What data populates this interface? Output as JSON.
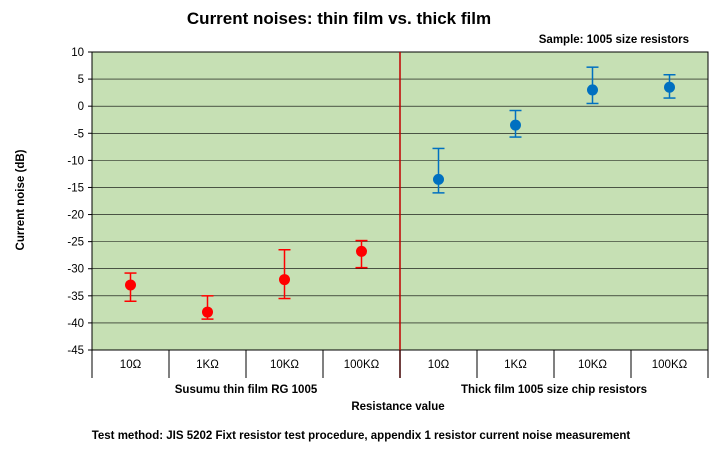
{
  "chart_data": {
    "type": "scatter",
    "title": "Current noises: thin film vs. thick film",
    "subtitle": "Sample: 1005 size resistors",
    "ylabel": "Current noise (dB)",
    "xlabel": "Resistance value",
    "footnote": "Test method: JIS 5202 Fixt resistor test procedure, appendix 1 resistor current noise measurement",
    "ylim": [
      -45,
      10
    ],
    "yticks": [
      10,
      5,
      0,
      -5,
      -10,
      -15,
      -20,
      -25,
      -30,
      -35,
      -40,
      -45
    ],
    "ytick_labels": [
      "10",
      "5",
      "0",
      "-5",
      "-10",
      "-15",
      "-20",
      "-25",
      "-30",
      "-35",
      "-40",
      "-45"
    ],
    "categories": [
      "10Ω",
      "1KΩ",
      "10KΩ",
      "100KΩ",
      "10Ω",
      "1KΩ",
      "10KΩ",
      "100KΩ"
    ],
    "groups": [
      "Susumu thin film RG 1005",
      "Thick film 1005 size chip resistors"
    ],
    "grid": true,
    "plot_background": "#c6e0b4",
    "divider_color": "#c00000",
    "series": [
      {
        "color": "#ff0000",
        "x_index": [
          0,
          1,
          2,
          3
        ],
        "values": [
          -33.0,
          -38.0,
          -32.0,
          -26.8
        ],
        "err_high": [
          -30.8,
          -35.0,
          -26.5,
          -24.8
        ],
        "err_low": [
          -36.0,
          -39.3,
          -35.5,
          -29.8
        ]
      },
      {
        "color": "#0070c0",
        "x_index": [
          4,
          5,
          6,
          7
        ],
        "values": [
          -13.5,
          -3.5,
          3.0,
          3.5
        ],
        "err_high": [
          -7.8,
          -0.8,
          7.2,
          5.8
        ],
        "err_low": [
          -16.0,
          -5.7,
          0.5,
          1.5
        ]
      }
    ]
  }
}
